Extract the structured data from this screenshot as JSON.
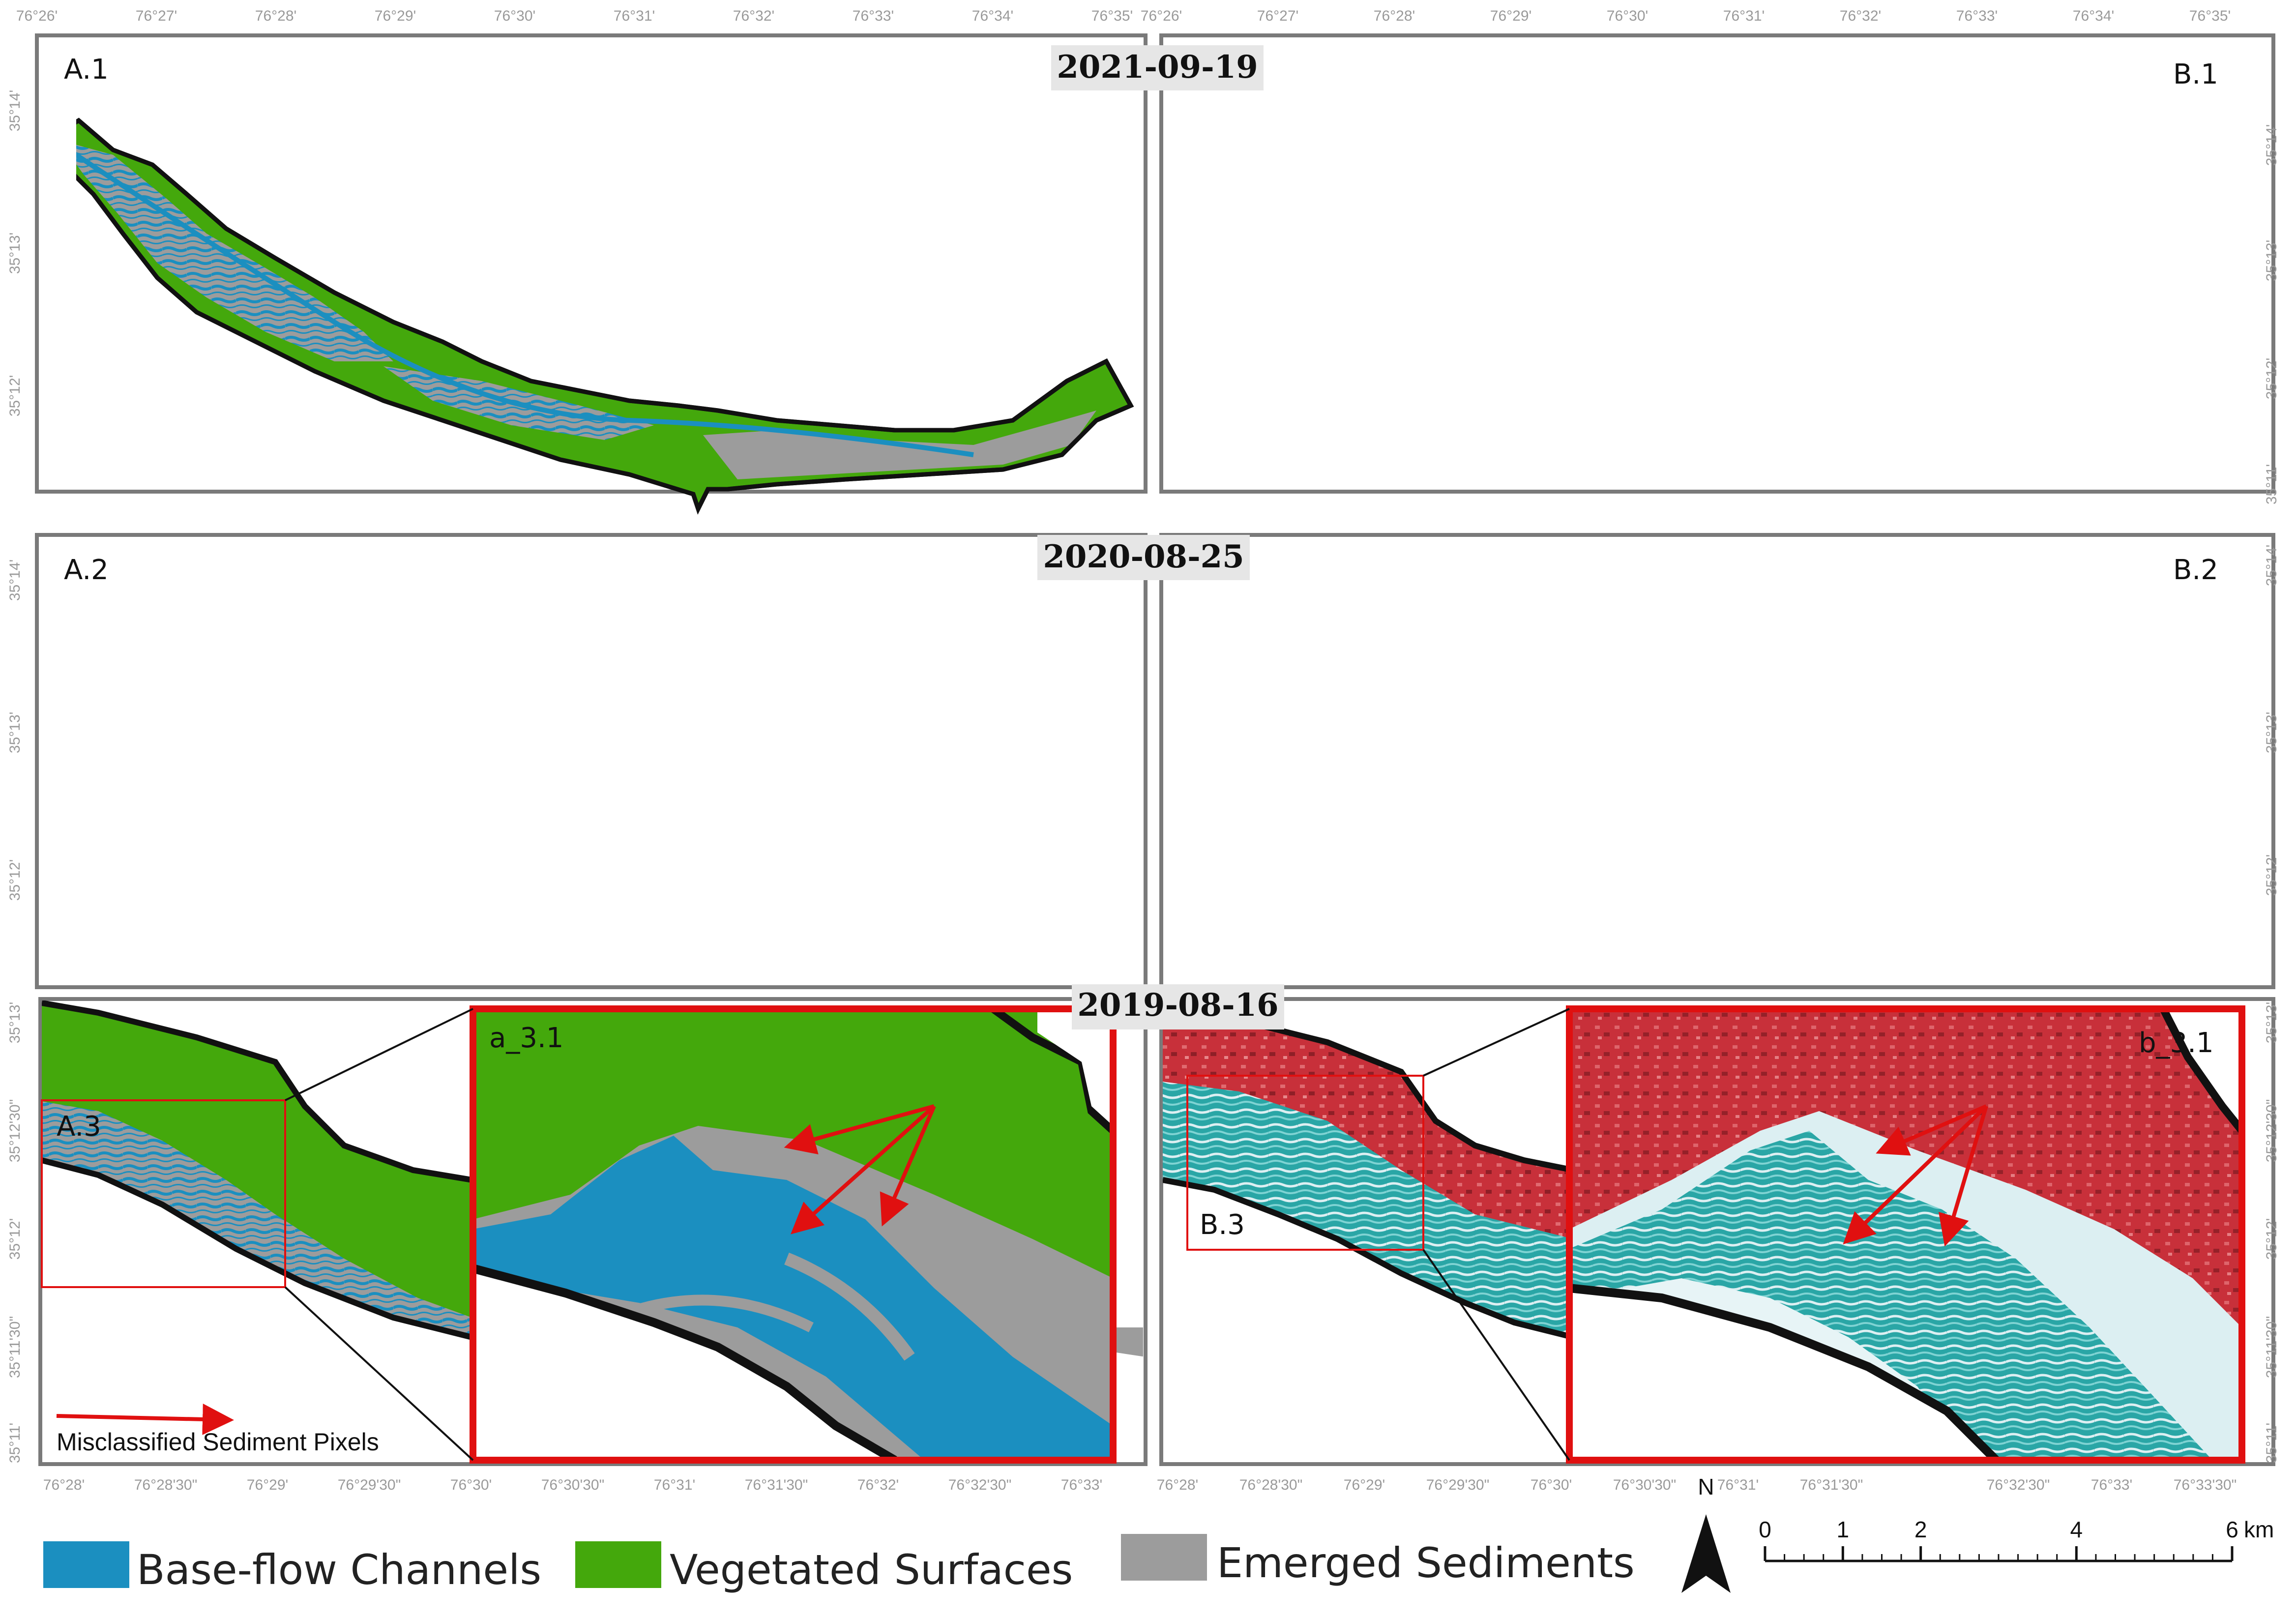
{
  "panels": {
    "a1": "A.1",
    "b1": "B.1",
    "a2": "A.2",
    "b2": "B.2",
    "a3": "A.3",
    "b3": "B.3",
    "a31": "a_3.1",
    "b31": "b_3.1"
  },
  "dates": [
    "2021-09-19",
    "2020-08-25",
    "2019-08-16"
  ],
  "ticks": {
    "top_lon": [
      "76°26'",
      "76°27'",
      "76°28'",
      "76°29'",
      "76°30'",
      "76°31'",
      "76°32'",
      "76°33'",
      "76°34'",
      "76°35'"
    ],
    "top_lat": [
      "35°14'",
      "35°13'",
      "35°12'",
      "35°11'"
    ],
    "mid_lat": [
      "35°14'",
      "35°13'",
      "35°12'"
    ],
    "bottom_lon": [
      "76°28'",
      "76°28'30\"",
      "76°29'",
      "76°29'30\"",
      "76°30'",
      "76°30'30\"",
      "76°31'",
      "76°31'30\"",
      "76°32'",
      "76°32'30\"",
      "76°33'",
      "76°33'30\""
    ],
    "bottom_lat": [
      "35°13'",
      "35°12'30\"",
      "35°12'",
      "35°11'30\"",
      "35°11'"
    ]
  },
  "legend": {
    "items": [
      {
        "label": "Base-flow Channels",
        "color": "#1b8fc0"
      },
      {
        "label": "Vegetated Surfaces",
        "color": "#44a80c"
      },
      {
        "label": "Emerged Sediments",
        "color": "#9c9c9c"
      }
    ]
  },
  "annotation": {
    "label": "Misclassified Sediment Pixels",
    "color": "#e01010"
  },
  "north": {
    "label": "N"
  },
  "scale_bar": {
    "ticks": [
      "0",
      "1",
      "2",
      "4",
      "6"
    ],
    "unit": "km"
  },
  "colors": {
    "channels": "#1b8fc0",
    "vegetation": "#44a80c",
    "sediment": "#9c9c9c",
    "fcc_water": "#2aa6a6",
    "fcc_veg": "#c8303a",
    "fcc_sediment": "#dceff2",
    "highlight": "#e01010"
  }
}
